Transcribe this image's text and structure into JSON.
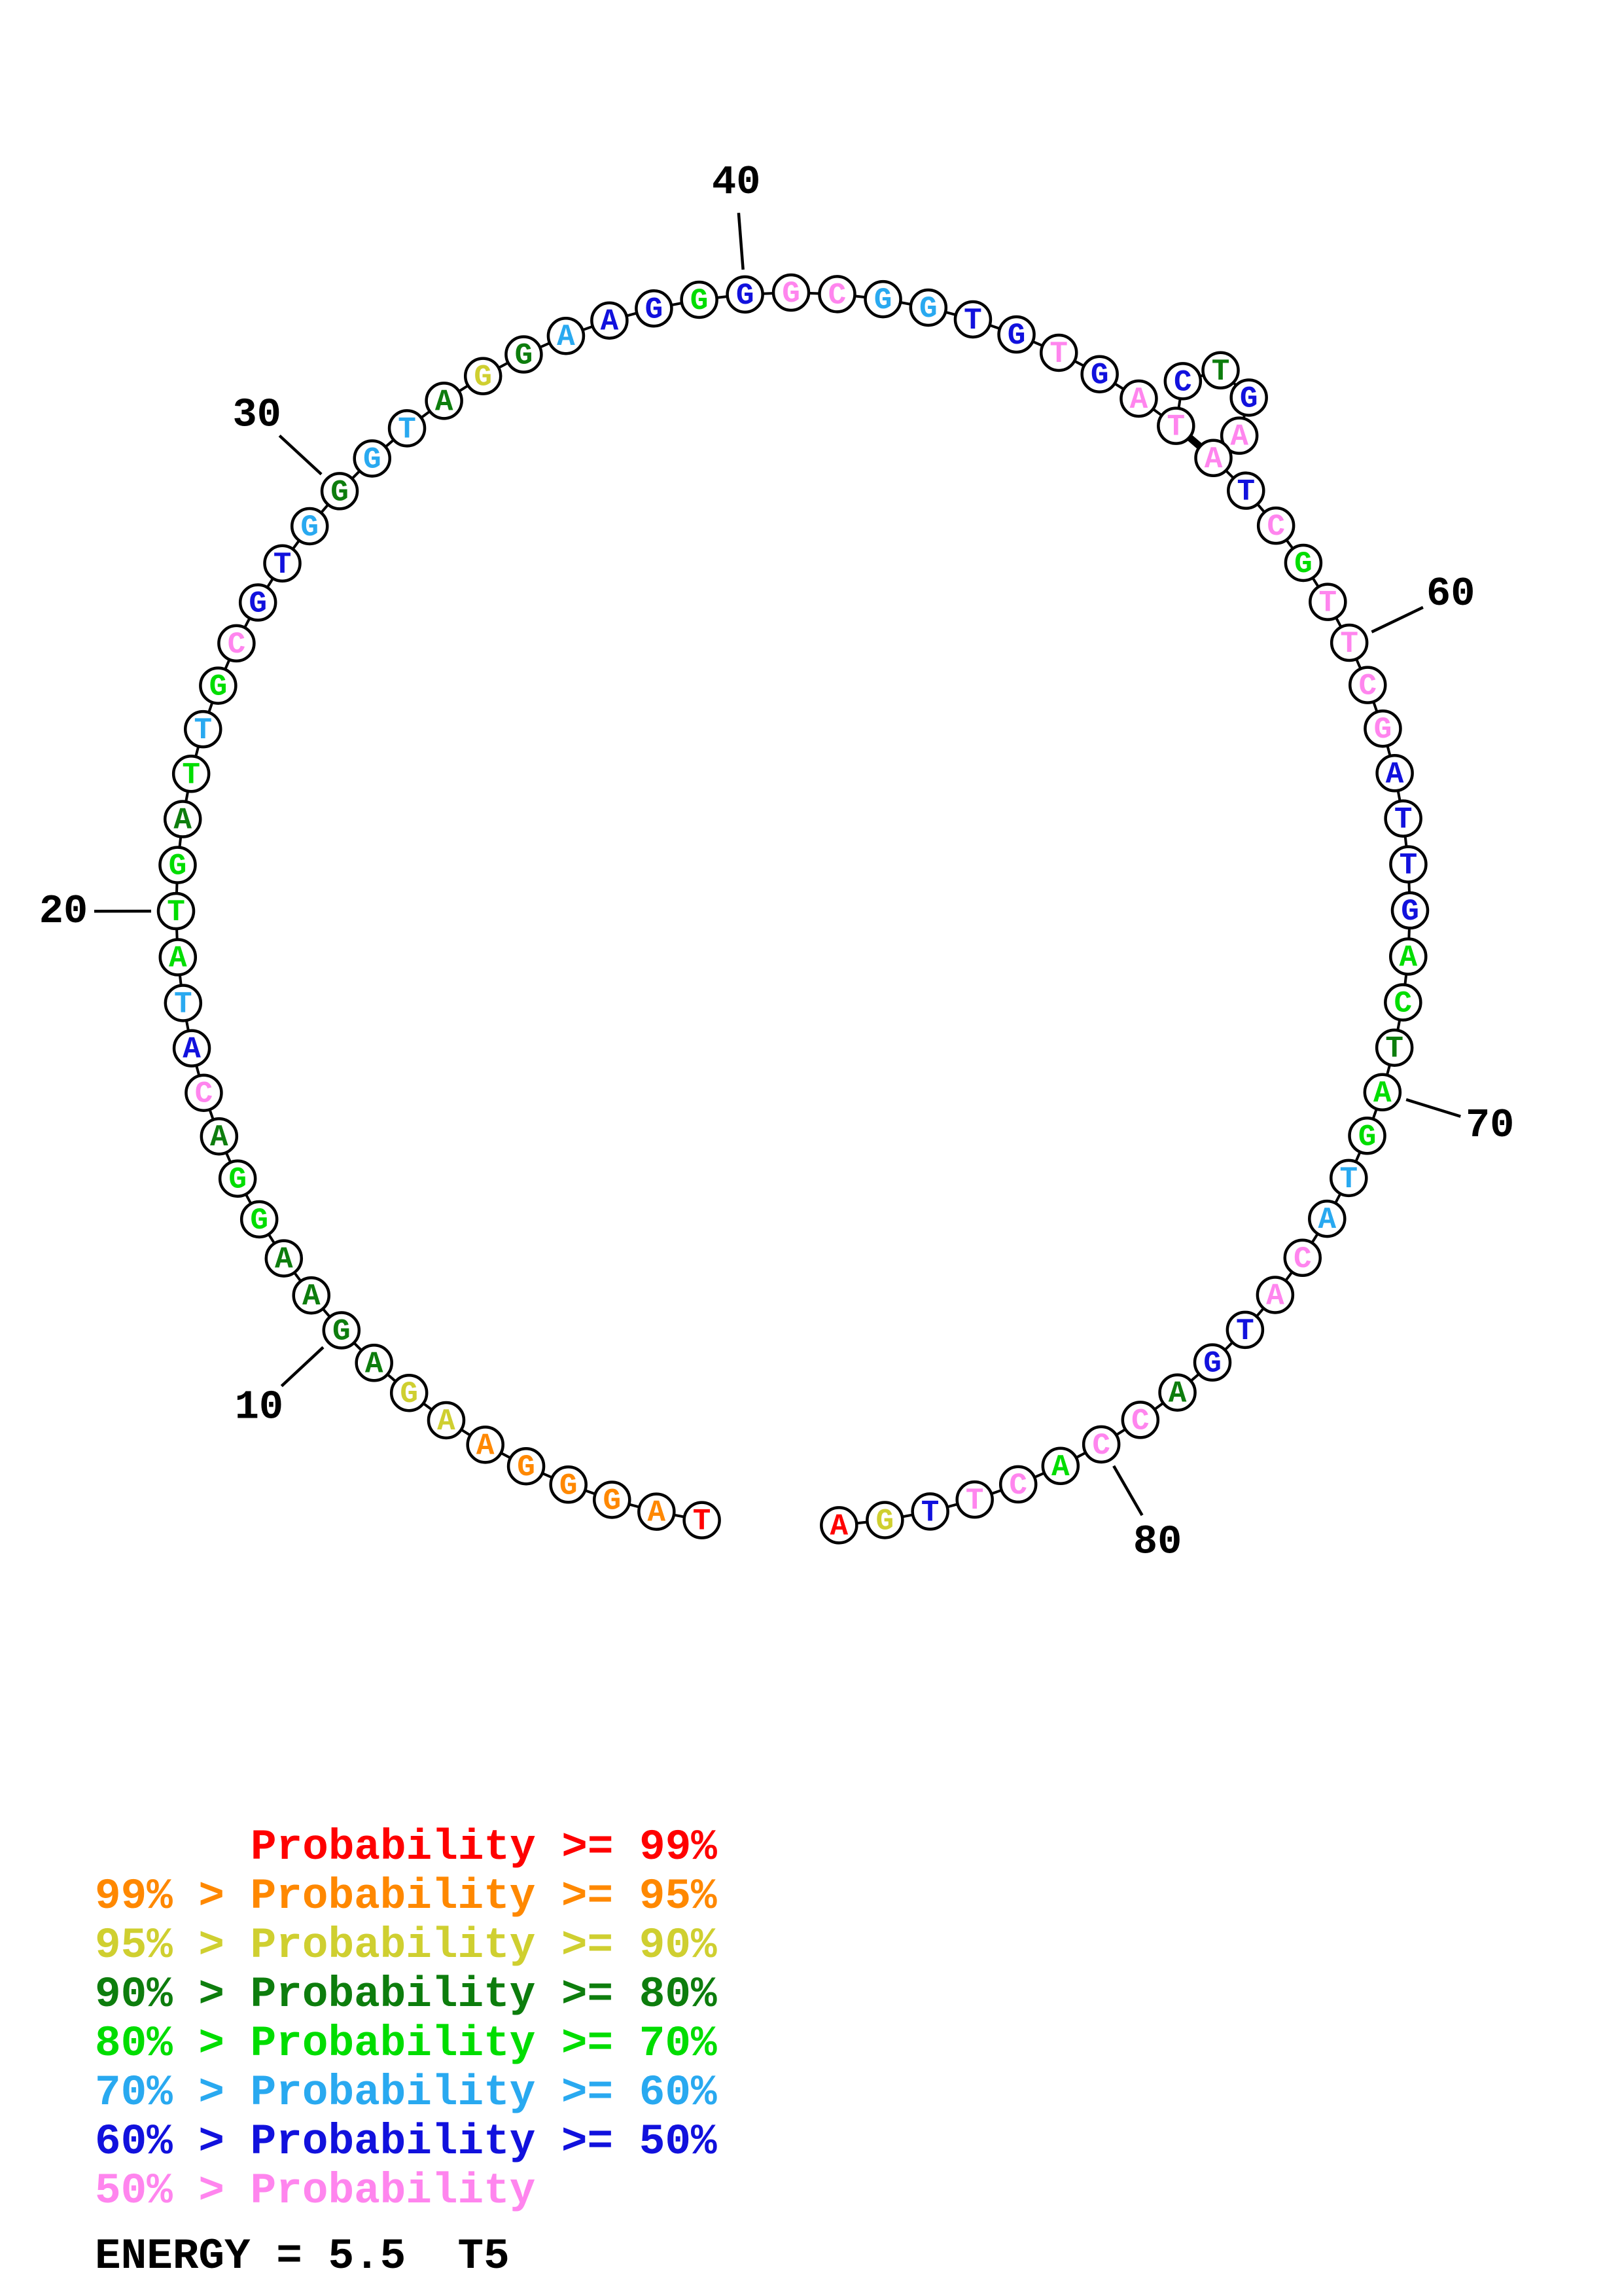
{
  "figure": {
    "energy_label": "ENERGY = 5.5  T5",
    "legend": [
      {
        "text": "Probability >= 99%",
        "color": "#ff0000"
      },
      {
        "text": "99% > Probability >= 95%",
        "color": "#ff8800"
      },
      {
        "text": "95% > Probability >= 90%",
        "color": "#cfcf30"
      },
      {
        "text": "90% > Probability >= 80%",
        "color": "#0d7d0d"
      },
      {
        "text": "80% > Probability >= 70%",
        "color": "#00dd00"
      },
      {
        "text": "70% > Probability >= 60%",
        "color": "#29a9f0"
      },
      {
        "text": "60% > Probability >= 50%",
        "color": "#1111dd"
      },
      {
        "text": "50% > Probability",
        "color": "#ff85ee"
      }
    ]
  },
  "chart_data": {
    "type": "circular-nucleotide-structure-plot",
    "sequence": "TAGGGAAGAGAAGGACATATGATTGCGTGGGTAGGAAGGGGCGGTGTGATCTGAATCGTTCGATTGACTAGTACATGACCACTTGA",
    "probs": [
      "p99",
      "p95",
      "p95",
      "p95",
      "p95",
      "p95",
      "p90",
      "p90",
      "p80",
      "p80",
      "p80",
      "p80",
      "p70",
      "p70",
      "p80",
      "lt50",
      "p50",
      "p60",
      "p70",
      "p70",
      "p70",
      "p80",
      "p70",
      "p60",
      "p70",
      "lt50",
      "p50",
      "p50",
      "p60",
      "p80",
      "p60",
      "p60",
      "p80",
      "p90",
      "p80",
      "p60",
      "p50",
      "p50",
      "p70",
      "p50",
      "lt50",
      "lt50",
      "p60",
      "p60",
      "p50",
      "p50",
      "lt50",
      "p50",
      "lt50",
      "lt50",
      "p50",
      "p80",
      "p50",
      "lt50",
      "lt50",
      "p50",
      "lt50",
      "p70",
      "lt50",
      "lt50",
      "lt50",
      "lt50",
      "p50",
      "p50",
      "p50",
      "p50",
      "p70",
      "p70",
      "p80",
      "p70",
      "p70",
      "p60",
      "p60",
      "lt50",
      "lt50",
      "p50",
      "p50",
      "p80",
      "lt50",
      "lt50",
      "p70",
      "lt50",
      "lt50",
      "p50",
      "p90",
      "p99"
    ],
    "palette": {
      "p99": "#ff0000",
      "p95": "#ff8800",
      "p90": "#cfcf30",
      "p80": "#0d7d0d",
      "p70": "#00dd00",
      "p60": "#29a9f0",
      "p50": "#1111dd",
      "lt50": "#ff85ee"
    },
    "ticks": [
      {
        "at": 10,
        "label": "10"
      },
      {
        "at": 20,
        "label": "20"
      },
      {
        "at": 30,
        "label": "30"
      },
      {
        "at": 40,
        "label": "40"
      },
      {
        "at": 60,
        "label": "60"
      },
      {
        "at": 70,
        "label": "70"
      },
      {
        "at": 80,
        "label": "80"
      }
    ],
    "base_pairs": [
      [
        50,
        55
      ]
    ],
    "hairpin_loop": [
      51,
      52,
      53,
      54
    ]
  }
}
